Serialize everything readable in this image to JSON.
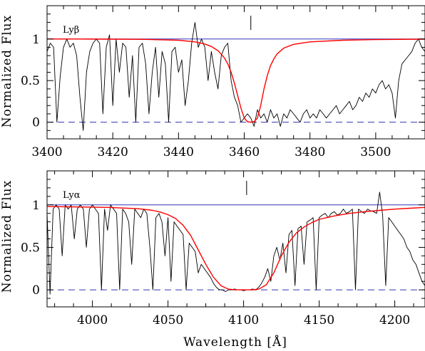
{
  "figure": {
    "xlabel": "Wavelength [Å]",
    "ylabel": "Normalized Flux"
  },
  "chart_data": [
    {
      "type": "line",
      "label": "Lyβ",
      "xlim": [
        3400,
        3515
      ],
      "ylim": [
        -0.2,
        1.4
      ],
      "x_ticks": [
        3400,
        3420,
        3440,
        3460,
        3480,
        3500
      ],
      "y_ticks": [
        0,
        0.5,
        1
      ],
      "y_tick_labels": [
        "0",
        "0.5",
        "1"
      ],
      "continuum": 1.0,
      "zero_level": 0.0,
      "marker_x": 3462,
      "series": [
        {
          "role": "flux",
          "color": "#000000",
          "x": [
            3400,
            3401,
            3402,
            3403,
            3404,
            3405,
            3406,
            3407,
            3408,
            3409,
            3410,
            3411,
            3412,
            3413,
            3414,
            3415,
            3416,
            3417,
            3418,
            3419,
            3420,
            3421,
            3422,
            3423,
            3424,
            3425,
            3426,
            3427,
            3428,
            3429,
            3430,
            3431,
            3432,
            3433,
            3434,
            3435,
            3436,
            3437,
            3438,
            3439,
            3440,
            3441,
            3442,
            3443,
            3444,
            3445,
            3446,
            3447,
            3448,
            3449,
            3450,
            3451,
            3452,
            3453,
            3454,
            3455,
            3456,
            3457,
            3458,
            3459,
            3460,
            3461,
            3462,
            3463,
            3464,
            3465,
            3466,
            3467,
            3468,
            3469,
            3470,
            3471,
            3472,
            3473,
            3474,
            3475,
            3476,
            3477,
            3478,
            3479,
            3480,
            3481,
            3482,
            3483,
            3484,
            3485,
            3486,
            3487,
            3488,
            3489,
            3490,
            3491,
            3492,
            3493,
            3494,
            3495,
            3496,
            3497,
            3498,
            3499,
            3500,
            3501,
            3502,
            3503,
            3504,
            3505,
            3506,
            3507,
            3508,
            3509,
            3510,
            3511,
            3512,
            3513,
            3514,
            3515
          ],
          "y": [
            0.85,
            0.95,
            0.9,
            0.0,
            0.55,
            0.9,
            1.0,
            0.9,
            0.95,
            0.8,
            0.3,
            -0.1,
            0.6,
            0.85,
            0.95,
            1.0,
            0.95,
            0.1,
            0.9,
            1.05,
            0.2,
            1.0,
            0.6,
            0.95,
            0.9,
            0.3,
            0.8,
            0.0,
            0.9,
            0.95,
            0.7,
            0.1,
            0.6,
            0.9,
            0.3,
            0.85,
            0.7,
            0.0,
            0.85,
            0.9,
            0.6,
            0.75,
            0.2,
            0.5,
            0.95,
            1.2,
            0.9,
            1.0,
            0.9,
            0.5,
            0.85,
            0.6,
            0.4,
            0.8,
            0.9,
            0.95,
            0.5,
            0.3,
            0.2,
            0.0,
            0.05,
            0.1,
            0.05,
            -0.05,
            0.15,
            0.05,
            0.1,
            0.0,
            0.15,
            0.05,
            0.1,
            -0.05,
            0.1,
            0.05,
            0.15,
            0.1,
            0.05,
            0.0,
            0.1,
            0.15,
            0.05,
            0.1,
            0.05,
            0.15,
            0.1,
            0.05,
            0.1,
            0.15,
            0.2,
            0.1,
            0.15,
            0.2,
            0.25,
            0.15,
            0.2,
            0.3,
            0.25,
            0.35,
            0.3,
            0.4,
            0.35,
            0.45,
            0.5,
            0.4,
            0.45,
            0.35,
            0.05,
            0.5,
            0.7,
            0.75,
            0.8,
            0.85,
            0.95,
            1.0,
            0.9,
            0.85
          ]
        },
        {
          "role": "model",
          "color": "#ff0000",
          "x": [
            3400,
            3410,
            3420,
            3430,
            3440,
            3445,
            3448,
            3450,
            3452,
            3454,
            3455,
            3456,
            3457,
            3458,
            3459,
            3460,
            3461,
            3462,
            3463,
            3464,
            3465,
            3466,
            3467,
            3468,
            3469,
            3470,
            3472,
            3475,
            3480,
            3490,
            3500,
            3515
          ],
          "y": [
            1.0,
            1.0,
            0.998,
            0.995,
            0.985,
            0.965,
            0.94,
            0.91,
            0.86,
            0.77,
            0.7,
            0.6,
            0.47,
            0.32,
            0.17,
            0.05,
            0.005,
            0.0,
            0.005,
            0.05,
            0.2,
            0.4,
            0.56,
            0.68,
            0.76,
            0.82,
            0.89,
            0.935,
            0.965,
            0.985,
            0.993,
            0.998
          ]
        }
      ]
    },
    {
      "type": "line",
      "label": "Lyα",
      "xlim": [
        3970,
        4220
      ],
      "ylim": [
        -0.2,
        1.4
      ],
      "x_ticks": [
        4000,
        4050,
        4100,
        4150,
        4200
      ],
      "y_ticks": [
        0,
        0.5,
        1
      ],
      "y_tick_labels": [
        "0",
        "0.5",
        "1"
      ],
      "continuum": 1.0,
      "zero_level": 0.0,
      "marker_x": 4102,
      "series": [
        {
          "role": "flux",
          "color": "#000000",
          "x": [
            3970,
            3972,
            3974,
            3976,
            3978,
            3980,
            3982,
            3984,
            3986,
            3988,
            3990,
            3992,
            3994,
            3996,
            3998,
            4000,
            4002,
            4004,
            4006,
            4008,
            4010,
            4012,
            4014,
            4016,
            4018,
            4020,
            4022,
            4024,
            4026,
            4028,
            4030,
            4032,
            4034,
            4036,
            4038,
            4040,
            4042,
            4044,
            4046,
            4048,
            4050,
            4052,
            4054,
            4056,
            4058,
            4060,
            4062,
            4064,
            4066,
            4068,
            4070,
            4072,
            4074,
            4076,
            4078,
            4080,
            4082,
            4084,
            4086,
            4088,
            4090,
            4092,
            4094,
            4096,
            4098,
            4100,
            4102,
            4104,
            4106,
            4108,
            4110,
            4112,
            4114,
            4116,
            4118,
            4120,
            4122,
            4124,
            4126,
            4128,
            4130,
            4132,
            4134,
            4136,
            4138,
            4140,
            4142,
            4144,
            4146,
            4148,
            4150,
            4152,
            4154,
            4156,
            4158,
            4160,
            4162,
            4164,
            4166,
            4168,
            4170,
            4172,
            4174,
            4176,
            4178,
            4180,
            4182,
            4184,
            4186,
            4188,
            4190,
            4192,
            4194,
            4196,
            4198,
            4200,
            4202,
            4204,
            4206,
            4208,
            4210,
            4212,
            4214,
            4216,
            4218,
            4220
          ],
          "y": [
            0.9,
            -0.05,
            0.95,
            1.0,
            0.95,
            0.4,
            1.0,
            0.95,
            1.0,
            0.6,
            0.95,
            1.0,
            0.95,
            0.5,
            0.95,
            1.0,
            0.95,
            0.9,
            0.0,
            0.95,
            0.7,
            1.0,
            0.95,
            0.9,
            0.0,
            0.95,
            0.9,
            0.8,
            0.3,
            0.95,
            0.9,
            0.85,
            0.95,
            0.9,
            0.5,
            0.0,
            0.85,
            0.9,
            0.8,
            0.4,
            0.85,
            0.1,
            0.8,
            0.75,
            0.7,
            0.65,
            0.0,
            0.55,
            0.5,
            0.45,
            0.2,
            0.3,
            0.25,
            0.2,
            0.15,
            0.08,
            0.03,
            0.0,
            0.0,
            -0.02,
            0.0,
            0.0,
            0.01,
            0.0,
            0.0,
            -0.01,
            0.0,
            0.0,
            0.01,
            0.0,
            0.03,
            0.08,
            0.15,
            0.25,
            0.1,
            0.4,
            0.5,
            0.35,
            0.55,
            0.2,
            0.65,
            0.7,
            0.05,
            0.72,
            0.75,
            0.3,
            0.8,
            0.82,
            0.85,
            0.0,
            0.85,
            0.88,
            0.9,
            0.85,
            0.9,
            0.92,
            0.88,
            0.9,
            0.95,
            0.9,
            0.92,
            0.95,
            0.0,
            0.95,
            0.92,
            0.9,
            0.95,
            0.93,
            0.92,
            0.9,
            1.15,
            0.88,
            0.05,
            0.85,
            0.8,
            0.75,
            0.7,
            0.65,
            0.6,
            0.5,
            0.45,
            0.35,
            0.3,
            0.2,
            0.1,
            0.05
          ]
        },
        {
          "role": "model",
          "color": "#ff0000",
          "x": [
            3970,
            3990,
            4010,
            4030,
            4040,
            4045,
            4050,
            4055,
            4060,
            4065,
            4070,
            4075,
            4080,
            4085,
            4090,
            4095,
            4100,
            4105,
            4110,
            4115,
            4120,
            4125,
            4130,
            4135,
            4140,
            4145,
            4150,
            4160,
            4170,
            4180,
            4190,
            4200,
            4210,
            4220
          ],
          "y": [
            0.98,
            0.975,
            0.97,
            0.955,
            0.935,
            0.915,
            0.885,
            0.84,
            0.76,
            0.64,
            0.47,
            0.3,
            0.15,
            0.05,
            0.008,
            0.0,
            0.0,
            0.0,
            0.008,
            0.06,
            0.2,
            0.4,
            0.56,
            0.67,
            0.74,
            0.79,
            0.83,
            0.87,
            0.9,
            0.92,
            0.935,
            0.95,
            0.96,
            0.97
          ]
        }
      ]
    }
  ]
}
